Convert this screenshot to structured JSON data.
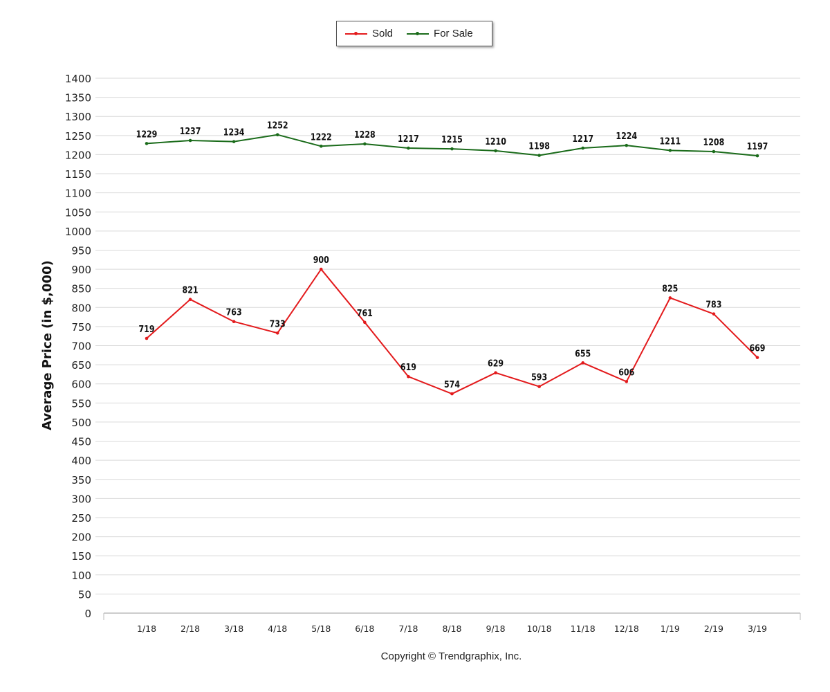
{
  "chart_data": {
    "type": "line",
    "categories": [
      "1/18",
      "2/18",
      "3/18",
      "4/18",
      "5/18",
      "6/18",
      "7/18",
      "8/18",
      "9/18",
      "10/18",
      "11/18",
      "12/18",
      "1/19",
      "2/19",
      "3/19"
    ],
    "series": [
      {
        "name": "Sold",
        "color": "#e31a1c",
        "values": [
          719,
          821,
          763,
          733,
          900,
          761,
          619,
          574,
          629,
          593,
          655,
          606,
          825,
          783,
          669
        ]
      },
      {
        "name": "For Sale",
        "color": "#1a6b1a",
        "values": [
          1229,
          1237,
          1234,
          1252,
          1222,
          1228,
          1217,
          1215,
          1210,
          1198,
          1217,
          1224,
          1211,
          1208,
          1197
        ]
      }
    ],
    "ylabel": "Average Price (in $,000)",
    "xlabel": "",
    "ylim": [
      0,
      1400
    ],
    "ytick_step": 50,
    "grid": true,
    "legend_position": "top-center"
  },
  "footer": {
    "copyright": "Copyright © Trendgraphix, Inc."
  }
}
